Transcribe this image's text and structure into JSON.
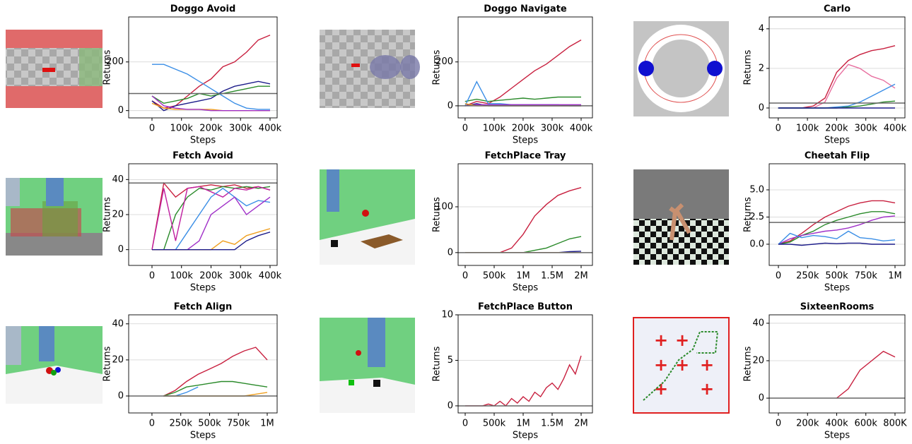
{
  "chart_data": [
    {
      "type": "line",
      "title": "Doggo Avoid",
      "x_label": "Steps",
      "y_label": "Returns",
      "grid": true,
      "hline": 70,
      "xlim": [
        -79000,
        424000
      ],
      "ylim": [
        -30,
        385
      ],
      "xticks": [
        0,
        {
          "value": 100000,
          "label": "100k"
        },
        {
          "value": 200000,
          "label": "200k"
        },
        {
          "value": 300000,
          "label": "300k"
        },
        {
          "value": 400000,
          "label": "400k"
        }
      ],
      "yticks": [
        0,
        200
      ],
      "x": [
        0,
        40000,
        80000,
        120000,
        160000,
        200000,
        240000,
        280000,
        320000,
        360000,
        400000
      ],
      "series": [
        {
          "color": "#c8203f",
          "values": [
            40,
            10,
            20,
            60,
            100,
            130,
            180,
            200,
            240,
            290,
            310
          ]
        },
        {
          "color": "#1c1c8a",
          "values": [
            40,
            0,
            20,
            30,
            40,
            50,
            80,
            100,
            110,
            120,
            110
          ]
        },
        {
          "color": "#2a8a2a",
          "values": [
            60,
            30,
            40,
            50,
            70,
            60,
            70,
            80,
            90,
            100,
            100
          ]
        },
        {
          "color": "#3a8ee6",
          "values": [
            190,
            190,
            170,
            150,
            120,
            90,
            60,
            30,
            10,
            5,
            5
          ]
        },
        {
          "color": "#f0a020",
          "values": [
            30,
            10,
            5,
            5,
            5,
            5,
            0,
            0,
            0,
            0,
            0
          ]
        },
        {
          "color": "#a030c8",
          "values": [
            60,
            20,
            10,
            5,
            5,
            0,
            0,
            0,
            0,
            0,
            0
          ]
        }
      ]
    },
    {
      "type": "line",
      "title": "Doggo Navigate",
      "x_label": "Steps",
      "y_label": "Returns",
      "grid": true,
      "hline": 0,
      "xlim": [
        -24000,
        439000
      ],
      "ylim": [
        -55,
        405
      ],
      "xticks": [
        0,
        {
          "value": 100000,
          "label": "100k"
        },
        {
          "value": 200000,
          "label": "200k"
        },
        {
          "value": 300000,
          "label": "300k"
        },
        {
          "value": 400000,
          "label": "400k"
        }
      ],
      "yticks": [
        0,
        200
      ],
      "x": [
        0,
        40000,
        80000,
        120000,
        160000,
        200000,
        240000,
        280000,
        320000,
        360000,
        400000
      ],
      "series": [
        {
          "color": "#c8203f",
          "values": [
            0,
            20,
            10,
            40,
            80,
            120,
            160,
            190,
            230,
            270,
            300
          ]
        },
        {
          "color": "#2a8a2a",
          "values": [
            20,
            30,
            20,
            25,
            30,
            35,
            30,
            35,
            40,
            40,
            40
          ]
        },
        {
          "color": "#3a8ee6",
          "values": [
            0,
            110,
            10,
            10,
            5,
            5,
            5,
            5,
            5,
            0,
            0
          ]
        },
        {
          "color": "#1c1c8a",
          "values": [
            0,
            10,
            0,
            0,
            0,
            0,
            0,
            0,
            0,
            0,
            0
          ]
        },
        {
          "color": "#a030c8",
          "values": [
            0,
            5,
            5,
            5,
            5,
            5,
            5,
            5,
            5,
            5,
            5
          ]
        },
        {
          "color": "#f0a020",
          "values": [
            10,
            0,
            0,
            0,
            0,
            0,
            0,
            0,
            0,
            0,
            0
          ]
        }
      ]
    },
    {
      "type": "line",
      "title": "Carlo",
      "x_label": "Steps",
      "y_label": "Returns",
      "grid": true,
      "hline": 0.25,
      "xlim": [
        -31000,
        434000
      ],
      "ylim": [
        -0.5,
        4.6
      ],
      "xticks": [
        0,
        {
          "value": 100000,
          "label": "100k"
        },
        {
          "value": 200000,
          "label": "200k"
        },
        {
          "value": 300000,
          "label": "300k"
        },
        {
          "value": 400000,
          "label": "400k"
        }
      ],
      "yticks": [
        0,
        2,
        4
      ],
      "x": [
        0,
        40000,
        80000,
        120000,
        160000,
        200000,
        240000,
        280000,
        320000,
        360000,
        400000
      ],
      "series": [
        {
          "color": "#c8203f",
          "values": [
            0,
            0,
            0,
            0.1,
            0.5,
            1.8,
            2.4,
            2.7,
            2.9,
            3.0,
            3.15
          ]
        },
        {
          "color": "#e870a0",
          "values": [
            0,
            0,
            0,
            0,
            0.3,
            1.5,
            2.2,
            2.0,
            1.6,
            1.4,
            1.0
          ]
        },
        {
          "color": "#3a8ee6",
          "values": [
            0,
            0,
            0,
            0,
            0,
            0.05,
            0.1,
            0.3,
            0.6,
            0.9,
            1.2
          ]
        },
        {
          "color": "#2a8a2a",
          "values": [
            0,
            0,
            0,
            0,
            0,
            0,
            0.05,
            0.1,
            0.2,
            0.3,
            0.35
          ]
        },
        {
          "color": "#1c1c8a",
          "values": [
            0,
            0,
            0,
            0,
            0,
            0,
            0,
            0,
            0,
            0,
            0
          ]
        }
      ]
    },
    {
      "type": "line",
      "title": "Fetch Avoid",
      "x_label": "Steps",
      "y_label": "Returns",
      "grid": true,
      "hline": 38,
      "xlim": [
        -79000,
        424000
      ],
      "ylim": [
        -9,
        49
      ],
      "xticks": [
        0,
        {
          "value": 100000,
          "label": "100k"
        },
        {
          "value": 200000,
          "label": "200k"
        },
        {
          "value": 300000,
          "label": "300k"
        },
        {
          "value": 400000,
          "label": "400k"
        }
      ],
      "yticks": [
        0,
        20,
        40
      ],
      "x": [
        0,
        40000,
        80000,
        120000,
        160000,
        200000,
        240000,
        280000,
        320000,
        360000,
        400000
      ],
      "series": [
        {
          "color": "#c8203f",
          "values": [
            0,
            38,
            30,
            35,
            36,
            37,
            36,
            37,
            35,
            36,
            34
          ]
        },
        {
          "color": "#2a8a2a",
          "values": [
            0,
            0,
            20,
            30,
            35,
            34,
            36,
            35,
            36,
            35,
            36
          ]
        },
        {
          "color": "#c020a0",
          "values": [
            0,
            35,
            5,
            35,
            36,
            33,
            30,
            35,
            34,
            36,
            34
          ]
        },
        {
          "color": "#3a8ee6",
          "values": [
            0,
            0,
            0,
            10,
            20,
            30,
            35,
            30,
            25,
            28,
            27
          ]
        },
        {
          "color": "#a030c8",
          "values": [
            0,
            0,
            0,
            0,
            5,
            20,
            25,
            30,
            20,
            25,
            30
          ]
        },
        {
          "color": "#f0a020",
          "values": [
            0,
            0,
            0,
            0,
            0,
            0,
            5,
            3,
            8,
            10,
            12
          ]
        },
        {
          "color": "#1c1c8a",
          "values": [
            0,
            0,
            0,
            0,
            0,
            0,
            0,
            0,
            5,
            8,
            10
          ]
        }
      ]
    },
    {
      "type": "line",
      "title": "FetchPlace Tray",
      "x_label": "Steps",
      "y_label": "Returns",
      "grid": true,
      "hline": 0,
      "xlim": [
        -122000,
        2195000
      ],
      "ylim": [
        -28,
        194
      ],
      "xticks": [
        0,
        {
          "value": 500000,
          "label": "500k"
        },
        {
          "value": 1000000,
          "label": "1M"
        },
        {
          "value": 1500000,
          "label": "1.5M"
        },
        {
          "value": 2000000,
          "label": "2M"
        }
      ],
      "yticks": [
        0,
        100
      ],
      "x": [
        0,
        200000,
        400000,
        600000,
        800000,
        1000000,
        1200000,
        1400000,
        1600000,
        1800000,
        2000000
      ],
      "series": [
        {
          "color": "#c8203f",
          "values": [
            0,
            0,
            0,
            0,
            10,
            40,
            80,
            105,
            125,
            135,
            142
          ]
        },
        {
          "color": "#2a8a2a",
          "values": [
            0,
            0,
            0,
            0,
            0,
            0,
            5,
            10,
            20,
            30,
            35
          ]
        },
        {
          "color": "#1c1c8a",
          "values": [
            0,
            0,
            0,
            0,
            0,
            0,
            0,
            0,
            0,
            2,
            3
          ]
        },
        {
          "color": "#f0a020",
          "values": [
            0,
            0,
            0,
            0,
            0,
            0,
            0,
            0,
            0,
            0,
            0
          ]
        }
      ]
    },
    {
      "type": "line",
      "title": "Cheetah Flip",
      "x_label": "Steps",
      "y_label": "Returns",
      "grid": true,
      "hline": 2,
      "xlim": [
        -79000,
        1085000
      ],
      "ylim": [
        -1.95,
        7.4
      ],
      "xticks": [
        0,
        {
          "value": 250000,
          "label": "250k"
        },
        {
          "value": 500000,
          "label": "500k"
        },
        {
          "value": 750000,
          "label": "750k"
        },
        {
          "value": 1000000,
          "label": "1M"
        }
      ],
      "yticks": [
        {
          "value": 0,
          "label": "0.0"
        },
        2.5,
        {
          "value": 5,
          "label": "5.0"
        }
      ],
      "x": [
        0,
        100000,
        200000,
        300000,
        400000,
        500000,
        600000,
        700000,
        800000,
        900000,
        1000000
      ],
      "series": [
        {
          "color": "#c8203f",
          "values": [
            0,
            0.3,
            1,
            1.8,
            2.5,
            3,
            3.5,
            3.8,
            4,
            4,
            3.8
          ]
        },
        {
          "color": "#2a8a2a",
          "values": [
            0,
            0.2,
            0.8,
            1.2,
            1.8,
            2.2,
            2.5,
            2.8,
            3,
            3,
            2.8
          ]
        },
        {
          "color": "#a030c8",
          "values": [
            0,
            0.5,
            0.8,
            1,
            1.2,
            1.3,
            1.5,
            1.8,
            2.2,
            2.5,
            2.6
          ]
        },
        {
          "color": "#3a8ee6",
          "values": [
            0,
            1,
            0.6,
            0.8,
            0.7,
            0.5,
            1.2,
            0.6,
            0.5,
            0.3,
            0.4
          ]
        },
        {
          "color": "#1c1c8a",
          "values": [
            0,
            0,
            -0.1,
            0,
            0.1,
            0.05,
            0.1,
            0.1,
            0,
            0,
            0
          ]
        }
      ]
    },
    {
      "type": "line",
      "title": "Fetch Align",
      "x_label": "Steps",
      "y_label": "Returns",
      "grid": true,
      "hline": 0,
      "xlim": [
        -202000,
        1086000
      ],
      "ylim": [
        -9.4,
        45
      ],
      "xticks": [
        0,
        {
          "value": 250000,
          "label": "250k"
        },
        {
          "value": 500000,
          "label": "500k"
        },
        {
          "value": 750000,
          "label": "750k"
        },
        {
          "value": 1000000,
          "label": "1M"
        }
      ],
      "yticks": [
        0,
        20,
        40
      ],
      "x": [
        0,
        100000,
        200000,
        300000,
        400000,
        500000,
        600000,
        700000,
        800000,
        900000,
        1000000
      ],
      "series": [
        {
          "color": "#c8203f",
          "values": [
            null,
            0,
            3,
            8,
            12,
            15,
            18,
            22,
            25,
            27,
            20
          ]
        },
        {
          "color": "#2a8a2a",
          "values": [
            null,
            0,
            2,
            5,
            6,
            7,
            8,
            8,
            7,
            6,
            5
          ]
        },
        {
          "color": "#3a8ee6",
          "values": [
            null,
            0,
            0,
            2,
            5,
            null,
            null,
            null,
            null,
            null,
            null
          ]
        },
        {
          "color": "#f0a020",
          "values": [
            null,
            0,
            0,
            0,
            0,
            0,
            0,
            0,
            0,
            1,
            2
          ]
        }
      ]
    },
    {
      "type": "line",
      "title": "FetchPlace Button",
      "x_label": "Steps",
      "y_label": "Returns",
      "grid": true,
      "hline": 0,
      "xlim": [
        -122000,
        2195000
      ],
      "ylim": [
        -0.78,
        10
      ],
      "xticks": [
        0,
        {
          "value": 500000,
          "label": "500k"
        },
        {
          "value": 1000000,
          "label": "1M"
        },
        {
          "value": 1500000,
          "label": "1.5M"
        },
        {
          "value": 2000000,
          "label": "2M"
        }
      ],
      "yticks": [
        0,
        5,
        10
      ],
      "x": [
        0,
        100000,
        200000,
        300000,
        400000,
        500000,
        600000,
        700000,
        800000,
        900000,
        1000000,
        1100000,
        1200000,
        1300000,
        1400000,
        1500000,
        1600000,
        1700000,
        1800000,
        1900000,
        2000000
      ],
      "series": [
        {
          "color": "#c8203f",
          "values": [
            0,
            0,
            0,
            0,
            0.2,
            0,
            0.5,
            0,
            0.8,
            0.3,
            1,
            0.5,
            1.5,
            1,
            2,
            2.5,
            1.8,
            3,
            4.5,
            3.5,
            5.5
          ]
        }
      ]
    },
    {
      "type": "line",
      "title": "SixteenRooms",
      "x_label": "Steps",
      "y_label": "Returns",
      "grid": true,
      "hline": 0,
      "xlim": [
        -63000,
        868000
      ],
      "ylim": [
        -7.9,
        44.5
      ],
      "xticks": [
        0,
        {
          "value": 200000,
          "label": "200k"
        },
        {
          "value": 400000,
          "label": "400k"
        },
        {
          "value": 600000,
          "label": "600k"
        },
        {
          "value": 800000,
          "label": "800K"
        }
      ],
      "yticks": [
        0,
        20,
        40
      ],
      "x": [
        0,
        80000,
        160000,
        240000,
        320000,
        400000,
        480000,
        560000,
        640000,
        720000,
        800000
      ],
      "series": [
        {
          "color": "#c8203f",
          "values": [
            null,
            null,
            null,
            null,
            null,
            0,
            5,
            15,
            20,
            25,
            22
          ]
        }
      ]
    }
  ]
}
